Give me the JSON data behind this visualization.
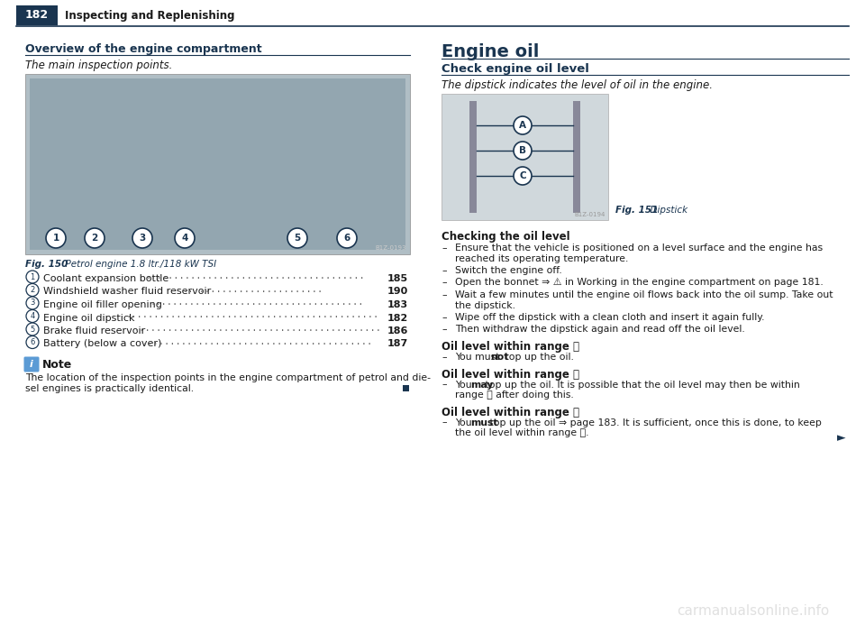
{
  "bg_color": "#ffffff",
  "page_num": "182",
  "header_bg": "#1a3550",
  "header_text": "Inspecting and Replenishing",
  "left_section_title": "Overview of the engine compartment",
  "left_section_subtitle": "The main inspection points.",
  "fig_caption_bold": "Fig. 150",
  "fig_caption_rest": "  Petrol engine 1.8 ltr./118 kW TSI",
  "items": [
    {
      "num": "1",
      "text": "Coolant expansion bottle ",
      "dots": ".......................................",
      "page": "185"
    },
    {
      "num": "2",
      "text": "Windshield washer fluid reservoir ",
      "dots": ".........................",
      "page": "190"
    },
    {
      "num": "3",
      "text": "Engine oil filler opening ",
      "dots": "......................................",
      "page": "183"
    },
    {
      "num": "4",
      "text": "Engine oil dipstick ",
      "dots": ".............................................",
      "page": "182"
    },
    {
      "num": "5",
      "text": "Brake fluid reservoir ",
      "dots": "............................................",
      "page": "186"
    },
    {
      "num": "6",
      "text": "Battery (below a cover) ",
      "dots": ".........................................",
      "page": "187"
    }
  ],
  "note_title": "Note",
  "note_text_line1": "The location of the inspection points in the engine compartment of petrol and die-",
  "note_text_line2": "sel engines is practically identical.",
  "right_section_title": "Engine oil",
  "right_section_subtitle": "Check engine oil level",
  "right_section_italic": "The dipstick indicates the level of oil in the engine.",
  "fig151_bold": "Fig. 151",
  "fig151_rest": "  Dipstick",
  "checking_title": "Checking the oil level",
  "checking_bullets": [
    [
      "Ensure that the vehicle is positioned on a level surface and the engine has",
      "reached its operating temperature."
    ],
    [
      "Switch the engine off."
    ],
    [
      "Open the bonnet ⇒ ⚠ in Working in the engine compartment on page 181."
    ],
    [
      "Wait a few minutes until the engine oil flows back into the oil sump. Take out",
      "the dipstick."
    ],
    [
      "Wipe off the dipstick with a clean cloth and insert it again fully."
    ],
    [
      "Then withdraw the dipstick again and read off the oil level."
    ]
  ],
  "oil_sections": [
    {
      "title": "Oil level within range Ⓐ",
      "lines": [
        [
          "You must ",
          "not",
          " top up the oil."
        ]
      ]
    },
    {
      "title": "Oil level within range Ⓑ",
      "lines": [
        [
          "You ",
          "may",
          " top up the oil. It is possible that the oil level may then be within"
        ],
        [
          "range Ⓐ after doing this."
        ]
      ]
    },
    {
      "title": "Oil level within range Ⓒ",
      "lines": [
        [
          "You ",
          "must",
          " top up the oil ⇒ page 183. It is sufficient, once this is done, to keep"
        ],
        [
          "the oil level within range Ⓑ."
        ]
      ]
    }
  ],
  "text_color": "#1a1a1a",
  "accent_color": "#1a3550",
  "dot_color": "#666666",
  "watermark": "carmanualsonline.info"
}
